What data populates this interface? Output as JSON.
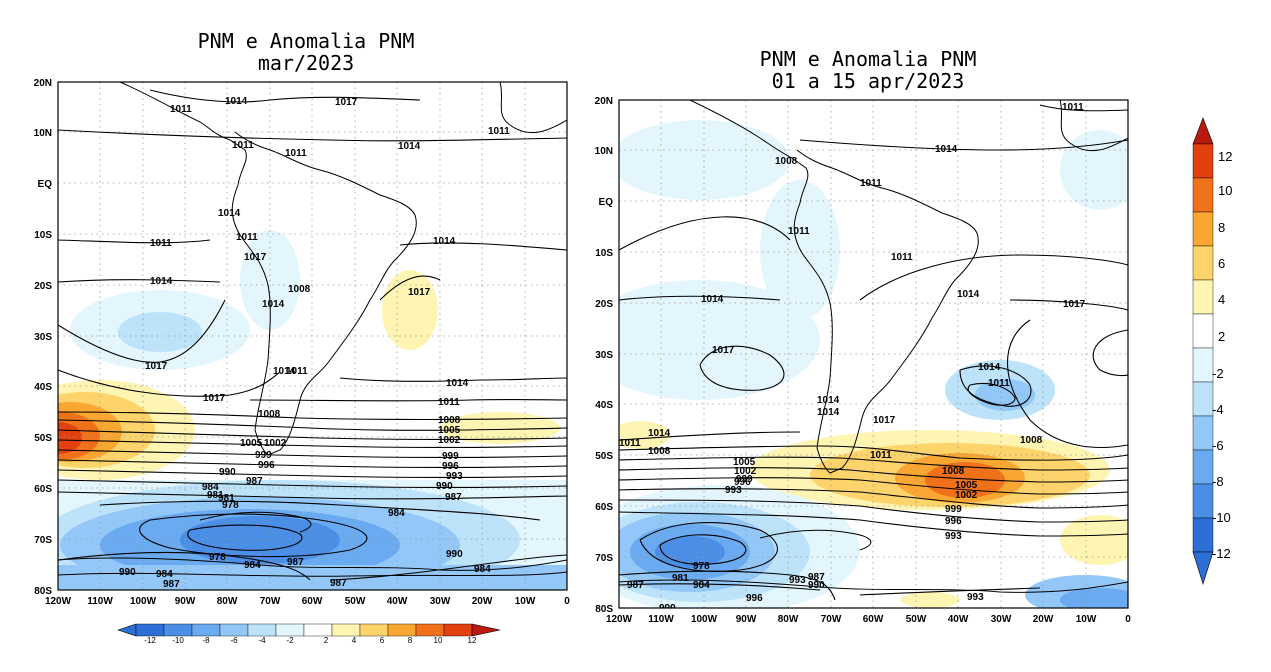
{
  "maps": [
    {
      "id": "mar2023",
      "title_line1": "PNM e Anomalia PNM",
      "title_line2": "mar/2023",
      "lat_labels": [
        "20N",
        "10N",
        "EQ",
        "10S",
        "20S",
        "30S",
        "40S",
        "50S",
        "60S",
        "70S",
        "80S"
      ],
      "lon_labels": [
        "120W",
        "110W",
        "100W",
        "90W",
        "80W",
        "70W",
        "60W",
        "50W",
        "40W",
        "30W",
        "20W",
        "10W",
        "0"
      ],
      "contour_labels": [
        "1014",
        "1017",
        "1011",
        "1011",
        "1014",
        "1011",
        "1011",
        "1014",
        "1011",
        "1014",
        "1011",
        "1017",
        "1008",
        "1014",
        "1014",
        "1017",
        "1017",
        "1017",
        "1014",
        "1011",
        "1008",
        "1005",
        "1002",
        "999",
        "996",
        "993",
        "990",
        "987",
        "984",
        "981",
        "978",
        "1014",
        "1011",
        "1008",
        "1005",
        "1002",
        "999",
        "996",
        "990",
        "987",
        "984",
        "981",
        "978",
        "984",
        "987",
        "990",
        "984",
        "987",
        "990",
        "984",
        "987"
      ]
    },
    {
      "id": "apr2023",
      "title_line1": "PNM e Anomalia PNM",
      "title_line2": "01 a 15 apr/2023",
      "lat_labels": [
        "20N",
        "10N",
        "EQ",
        "10S",
        "20S",
        "30S",
        "40S",
        "50S",
        "60S",
        "70S",
        "80S"
      ],
      "lon_labels": [
        "120W",
        "110W",
        "100W",
        "90W",
        "80W",
        "70W",
        "60W",
        "50W",
        "40W",
        "30W",
        "20W",
        "10W",
        "0"
      ],
      "contour_labels": [
        "1011",
        "1014",
        "1008",
        "1011",
        "1011",
        "1011",
        "1014",
        "1017",
        "1014",
        "1017",
        "1014",
        "1011",
        "1014",
        "1014",
        "1017",
        "1011",
        "1008",
        "1011",
        "1014",
        "1008",
        "1005",
        "1002",
        "999",
        "996",
        "993",
        "1008",
        "1005",
        "1002",
        "999",
        "996",
        "993",
        "978",
        "981",
        "984",
        "987",
        "990",
        "993",
        "996",
        "999",
        "987",
        "993"
      ]
    }
  ],
  "colorbars": [
    {
      "id": "horizontal-bottom",
      "labels": [
        "-12",
        "-10",
        "-8",
        "-6",
        "-4",
        "-2",
        "2",
        "4",
        "6",
        "8",
        "10",
        "12"
      ]
    },
    {
      "id": "vertical-right",
      "labels": [
        "12",
        "10",
        "8",
        "6",
        "4",
        "2",
        "-2",
        "-4",
        "-6",
        "-8",
        "-10",
        "-12"
      ]
    }
  ],
  "palette": [
    "#2d6fd6",
    "#4a8ee6",
    "#6aaaf0",
    "#93c7f7",
    "#bde3fb",
    "#e3f6fd",
    "#ffffff",
    "#fff5b3",
    "#fdd36b",
    "#f9a632",
    "#f1711b",
    "#e2400f",
    "#b81a0d"
  ]
}
